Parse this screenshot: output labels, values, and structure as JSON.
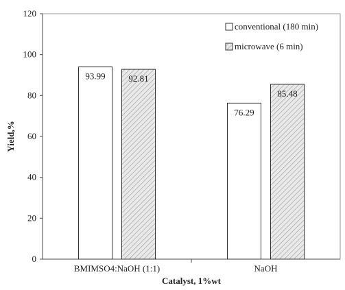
{
  "chart_data": {
    "type": "bar",
    "categories": [
      "BMIMSO4:NaOH (1:1)",
      "NaOH"
    ],
    "series": [
      {
        "name": "conventional (180 min)",
        "values": [
          93.99,
          76.29
        ],
        "labels": [
          "93.99",
          "76.29"
        ],
        "pattern": "solid",
        "color": "#ffffff"
      },
      {
        "name": "microwave (6 min)",
        "values": [
          92.81,
          85.48
        ],
        "labels": [
          "92.81",
          "85.48"
        ],
        "pattern": "hatched",
        "color": "#d9d9d9"
      }
    ],
    "title": "",
    "xlabel": "Catalyst, 1%wt",
    "ylabel": "Yield,%",
    "ylim": [
      0,
      120
    ],
    "yticks": [
      0,
      20,
      40,
      60,
      80,
      100,
      120
    ],
    "grid": false,
    "legend": "top-right"
  }
}
